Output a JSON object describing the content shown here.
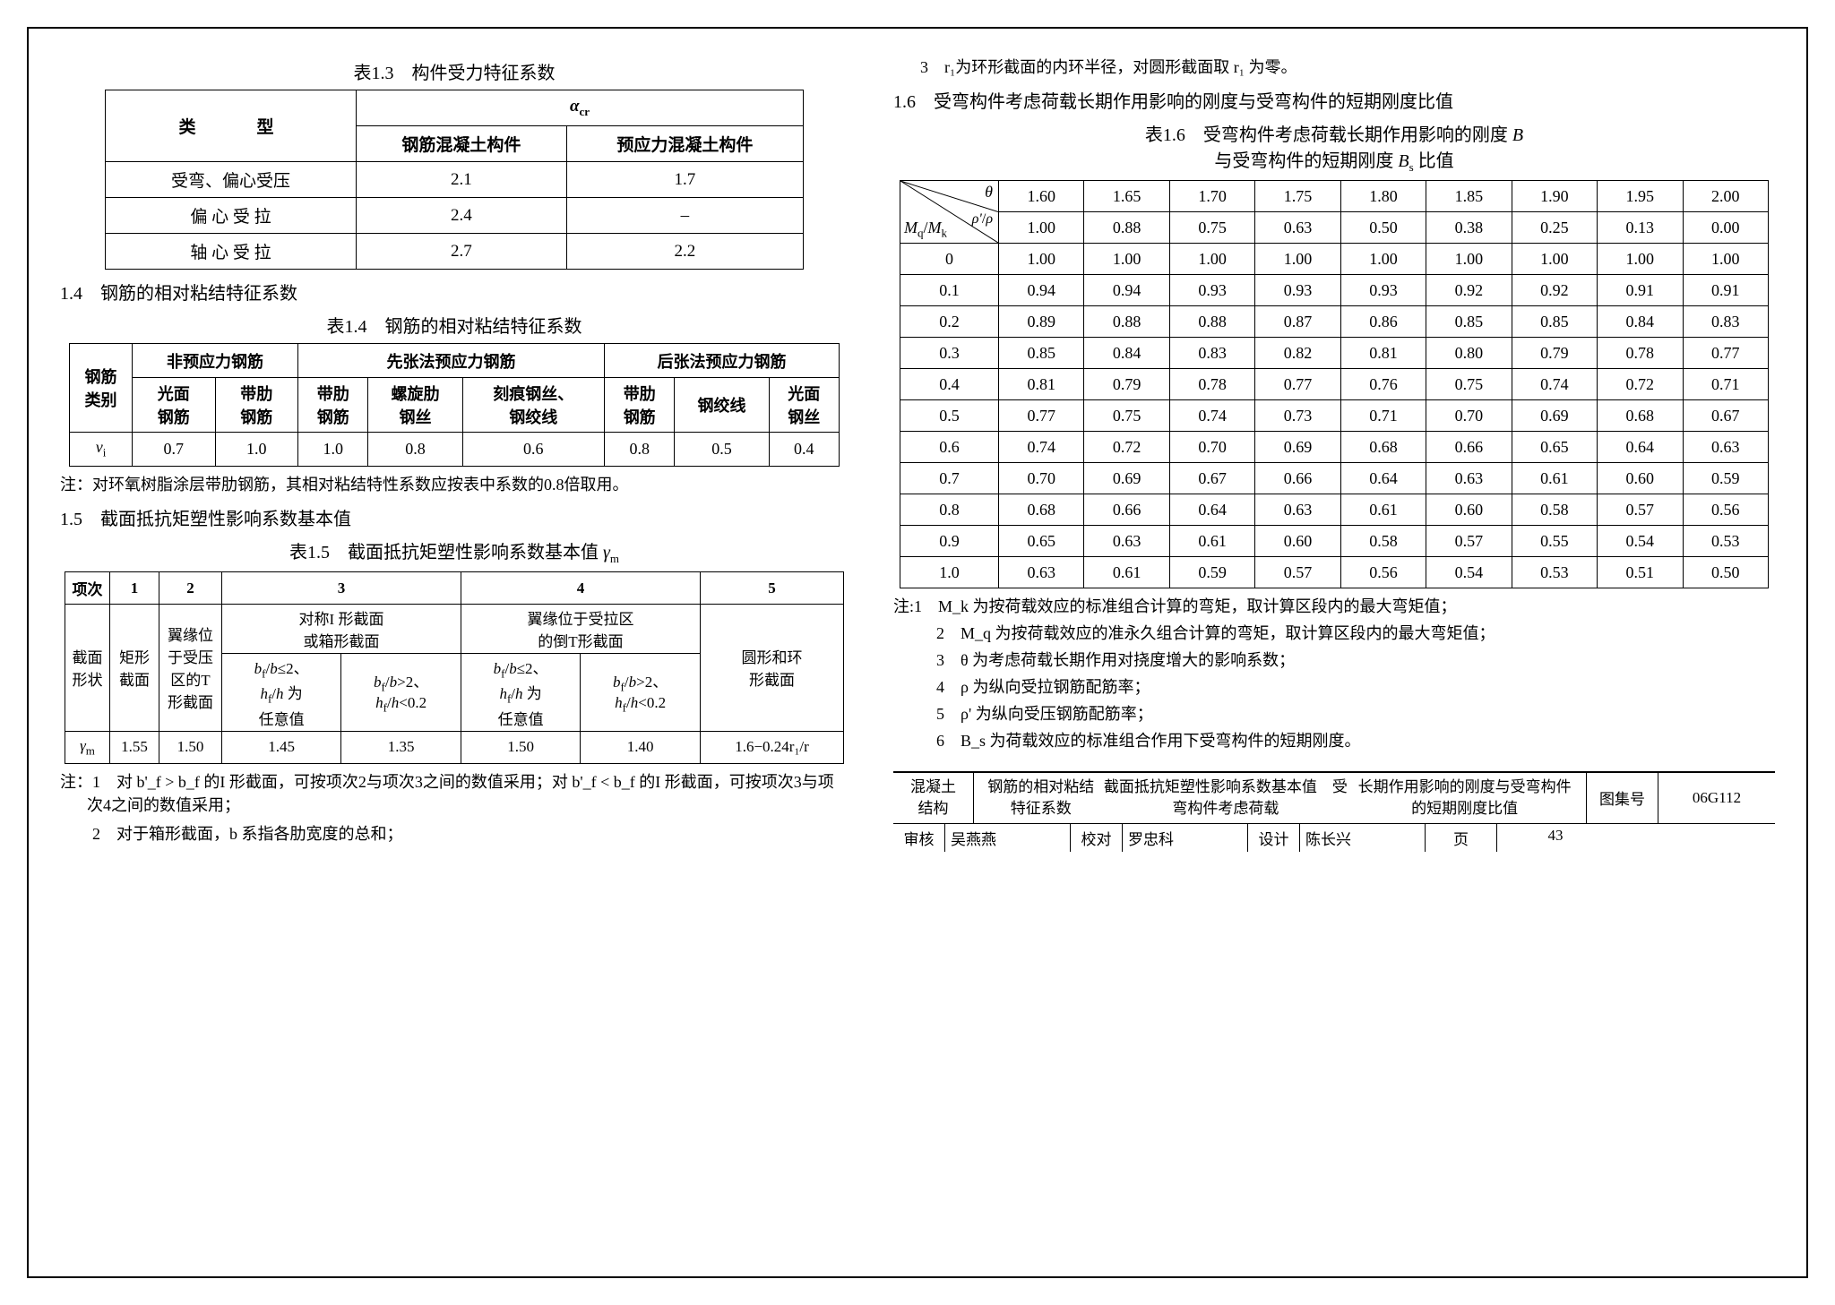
{
  "colors": {
    "text": "#000000",
    "background": "#ffffff",
    "border": "#000000"
  },
  "typography": {
    "body_fontsize": 18,
    "caption_fontsize": 20,
    "table_fontsize": 19,
    "font_family": "SimSun"
  },
  "table13": {
    "caption": "表1.3　构件受力特征系数",
    "columns": [
      "类　　型",
      "α_cr"
    ],
    "sub_columns": [
      "钢筋混凝土构件",
      "预应力混凝土构件"
    ],
    "rows": [
      {
        "type": "受弯、偏心受压",
        "rc": "2.1",
        "pc": "1.7"
      },
      {
        "type": "偏 心 受 拉",
        "rc": "2.4",
        "pc": "–"
      },
      {
        "type": "轴 心 受 拉",
        "rc": "2.7",
        "pc": "2.2"
      }
    ]
  },
  "sect14_title": "1.4　钢筋的相对粘结特征系数",
  "table14": {
    "caption": "表1.4　钢筋的相对粘结特征系数",
    "h_group_label": "钢筋类别",
    "groups": [
      "非预应力钢筋",
      "先张法预应力钢筋",
      "后张法预应力钢筋"
    ],
    "sub": [
      [
        "光面钢筋",
        "带肋钢筋"
      ],
      [
        "带肋钢筋",
        "螺旋肋钢丝",
        "刻痕钢丝、钢绞线"
      ],
      [
        "带肋钢筋",
        "钢绞线",
        "光面钢丝"
      ]
    ],
    "row_label": "ν_i",
    "values": [
      "0.7",
      "1.0",
      "1.0",
      "0.8",
      "0.6",
      "0.8",
      "0.5",
      "0.4"
    ],
    "note": "注：对环氧树脂涂层带肋钢筋，其相对粘结特性系数应按表中系数的0.8倍取用。"
  },
  "sect15_title": "1.5　截面抵抗矩塑性影响系数基本值",
  "table15": {
    "caption": "表1.5　截面抵抗矩塑性影响系数基本值 γ_m",
    "header_row": [
      "项次",
      "1",
      "2",
      "3",
      "4",
      "5"
    ],
    "shape_label": "截面形状",
    "shape_col1": "矩形截面",
    "shape_col2_lines": [
      "翼缘位",
      "于受压",
      "区的T",
      "形截面"
    ],
    "shape_col3_head": "对称I 形截面或箱形截面",
    "shape_col3a_lines": [
      "b_f / b ≤ 2、",
      "h_f / h 为",
      "任意值"
    ],
    "shape_col3b_lines": [
      "b_f / b > 2、",
      "h_f / h < 0.2"
    ],
    "shape_col4_head": "翼缘位于受拉区的倒T形截面",
    "shape_col4a_lines": [
      "b_f / b ≤ 2、",
      "h_f / h 为",
      "任意值"
    ],
    "shape_col4b_lines": [
      "b_f / b > 2、",
      "h_f / h < 0.2"
    ],
    "shape_col5": "圆形和环形截面",
    "gamma_label": "γ_m",
    "gamma_values": [
      "1.55",
      "1.50",
      "1.45",
      "1.35",
      "1.50",
      "1.40",
      "1.6−0.24r₁/r"
    ],
    "notes": [
      "注：1　对 b'_f > b_f 的I 形截面，可按项次2与项次3之间的数值采用；对 b'_f < b_f 的I 形截面，可按项次3与项次4之间的数值采用；",
      "　　2　对于箱形截面，b 系指各肋宽度的总和；"
    ]
  },
  "right_note3": "3　r₁为环形截面的内环半径，对圆形截面取 r₁ 为零。",
  "sect16_title": "1.6　受弯构件考虑荷载长期作用影响的刚度与受弯构件的短期刚度比值",
  "table16": {
    "caption_l1": "表1.6　受弯构件考虑荷载长期作用影响的刚度 B",
    "caption_l2": "与受弯构件的短期刚度 B_s 比值",
    "theta_label": "θ",
    "ratio_label": "ρ'/ ρ",
    "mm_label": "M_q / M_k",
    "theta_vals": [
      "1.60",
      "1.65",
      "1.70",
      "1.75",
      "1.80",
      "1.85",
      "1.90",
      "1.95",
      "2.00"
    ],
    "rho_vals": [
      "1.00",
      "0.88",
      "0.75",
      "0.63",
      "0.50",
      "0.38",
      "0.25",
      "0.13",
      "0.00"
    ],
    "rows": [
      {
        "k": "0",
        "v": [
          "1.00",
          "1.00",
          "1.00",
          "1.00",
          "1.00",
          "1.00",
          "1.00",
          "1.00",
          "1.00"
        ]
      },
      {
        "k": "0.1",
        "v": [
          "0.94",
          "0.94",
          "0.93",
          "0.93",
          "0.93",
          "0.92",
          "0.92",
          "0.91",
          "0.91"
        ]
      },
      {
        "k": "0.2",
        "v": [
          "0.89",
          "0.88",
          "0.88",
          "0.87",
          "0.86",
          "0.85",
          "0.85",
          "0.84",
          "0.83"
        ]
      },
      {
        "k": "0.3",
        "v": [
          "0.85",
          "0.84",
          "0.83",
          "0.82",
          "0.81",
          "0.80",
          "0.79",
          "0.78",
          "0.77"
        ]
      },
      {
        "k": "0.4",
        "v": [
          "0.81",
          "0.79",
          "0.78",
          "0.77",
          "0.76",
          "0.75",
          "0.74",
          "0.72",
          "0.71"
        ]
      },
      {
        "k": "0.5",
        "v": [
          "0.77",
          "0.75",
          "0.74",
          "0.73",
          "0.71",
          "0.70",
          "0.69",
          "0.68",
          "0.67"
        ]
      },
      {
        "k": "0.6",
        "v": [
          "0.74",
          "0.72",
          "0.70",
          "0.69",
          "0.68",
          "0.66",
          "0.65",
          "0.64",
          "0.63"
        ]
      },
      {
        "k": "0.7",
        "v": [
          "0.70",
          "0.69",
          "0.67",
          "0.66",
          "0.64",
          "0.63",
          "0.61",
          "0.60",
          "0.59"
        ]
      },
      {
        "k": "0.8",
        "v": [
          "0.68",
          "0.66",
          "0.64",
          "0.63",
          "0.61",
          "0.60",
          "0.58",
          "0.57",
          "0.56"
        ]
      },
      {
        "k": "0.9",
        "v": [
          "0.65",
          "0.63",
          "0.61",
          "0.60",
          "0.58",
          "0.57",
          "0.55",
          "0.54",
          "0.53"
        ]
      },
      {
        "k": "1.0",
        "v": [
          "0.63",
          "0.61",
          "0.59",
          "0.57",
          "0.56",
          "0.54",
          "0.53",
          "0.51",
          "0.50"
        ]
      }
    ],
    "notes": [
      "注:1　M_k 为按荷载效应的标准组合计算的弯矩，取计算区段内的最大弯矩值；",
      "　2　M_q 为按荷载效应的准永久组合计算的弯矩，取计算区段内的最大弯矩值；",
      "　3　θ 为考虑荷载长期作用对挠度增大的影响系数；",
      "　4　ρ 为纵向受拉钢筋配筋率；",
      "　5　ρ' 为纵向受压钢筋配筋率；",
      "　6　B_s 为荷载效应的标准组合作用下受弯构件的短期刚度。"
    ]
  },
  "titleblock": {
    "struct_l1": "混凝土",
    "struct_l2": "结构",
    "main_l1": "钢筋的相对粘结特征系数",
    "main_l2": "截面抵抗矩塑性影响系数基本值　受弯构件考虑荷载",
    "main_l3": "长期作用影响的刚度与受弯构件的短期刚度比值",
    "set_k": "图集号",
    "set_v": "06G112",
    "review_k": "审核",
    "review_v": "吴燕燕",
    "check_k": "校对",
    "check_v": "罗忠科",
    "design_k": "设计",
    "design_v": "陈长兴",
    "page_k": "页",
    "page_v": "43"
  }
}
